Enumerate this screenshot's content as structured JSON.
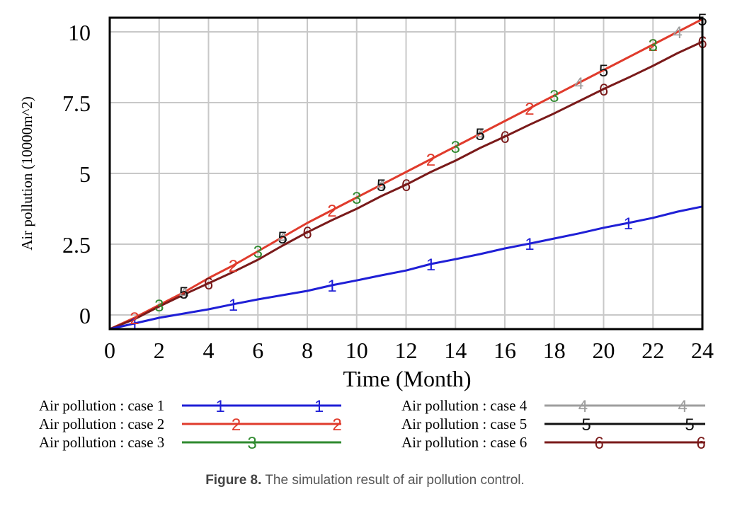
{
  "chart_data": {
    "type": "line",
    "title": "",
    "xlabel": "Time (Month)",
    "ylabel": "Air pollution (10000m^2)",
    "xlim": [
      0,
      24
    ],
    "ylim": [
      -0.5,
      10.5
    ],
    "xticks": [
      0,
      2,
      4,
      6,
      8,
      10,
      12,
      14,
      16,
      18,
      20,
      22,
      24
    ],
    "yticks": [
      0,
      2.5,
      5,
      7.5,
      10
    ],
    "ytick_labels": [
      "0",
      "2.5",
      "5",
      "7.5",
      "10"
    ],
    "grid": true,
    "legend_position": "bottom",
    "series": [
      {
        "name": "Air pollution : case 1",
        "marker": "1",
        "color": "#1f1fd6",
        "x": [
          0,
          1,
          2,
          3,
          4,
          5,
          6,
          7,
          8,
          9,
          10,
          11,
          12,
          13,
          14,
          15,
          16,
          17,
          18,
          19,
          20,
          21,
          22,
          23,
          24
        ],
        "y": [
          -0.5,
          -0.3,
          -0.1,
          0.05,
          0.2,
          0.38,
          0.55,
          0.7,
          0.85,
          1.05,
          1.22,
          1.4,
          1.57,
          1.8,
          1.97,
          2.15,
          2.35,
          2.52,
          2.7,
          2.88,
          3.08,
          3.25,
          3.43,
          3.65,
          3.83
        ],
        "label_positions": [
          1,
          5,
          9,
          13,
          17,
          21
        ],
        "legend_markers": [
          "1",
          "1"
        ]
      },
      {
        "name": "Air pollution : case 2",
        "marker": "2",
        "color": "#e03b2c",
        "x": [
          0,
          1,
          2,
          3,
          4,
          5,
          6,
          7,
          8,
          9,
          10,
          11,
          12,
          13,
          14,
          15,
          16,
          17,
          18,
          19,
          20,
          21,
          22,
          23,
          24
        ],
        "y": [
          -0.5,
          -0.1,
          0.35,
          0.8,
          1.3,
          1.75,
          2.25,
          2.75,
          3.25,
          3.7,
          4.15,
          4.6,
          5.05,
          5.5,
          5.95,
          6.4,
          6.85,
          7.3,
          7.75,
          8.2,
          8.65,
          9.1,
          9.55,
          10.0,
          10.45
        ],
        "label_positions": [
          1,
          5,
          9,
          13,
          17,
          22
        ],
        "legend_markers": [
          "2",
          "2"
        ]
      },
      {
        "name": "Air pollution : case 3",
        "marker": "3",
        "color": "#2f8a2f",
        "x": [
          0,
          2,
          6,
          10,
          14,
          18,
          22
        ],
        "y": [
          -0.5,
          0.35,
          2.25,
          4.15,
          5.95,
          7.75,
          9.55
        ],
        "label_positions": [
          2,
          6,
          10,
          14,
          18,
          22
        ],
        "legend_markers": [
          "3"
        ]
      },
      {
        "name": "Air pollution : case 4",
        "marker": "4",
        "color": "#9e9e9e",
        "x": [
          0,
          3,
          7,
          11,
          15,
          19,
          23
        ],
        "y": [
          -0.5,
          0.8,
          2.75,
          4.6,
          6.4,
          8.2,
          10.0
        ],
        "label_positions": [
          3,
          7,
          11,
          15,
          19,
          23
        ],
        "legend_markers": [
          "4",
          "4"
        ]
      },
      {
        "name": "Air pollution : case 5",
        "marker": "5",
        "color": "#111111",
        "x": [
          0,
          3,
          7,
          11,
          15,
          20,
          24
        ],
        "y": [
          -0.5,
          0.8,
          2.75,
          4.6,
          6.4,
          8.65,
          10.45
        ],
        "label_positions": [
          3,
          7,
          11,
          15,
          20,
          24
        ],
        "legend_markers": [
          "5",
          "5"
        ]
      },
      {
        "name": "Air pollution : case 6",
        "marker": "6",
        "color": "#7a1a1a",
        "x": [
          0,
          1,
          2,
          3,
          4,
          5,
          6,
          7,
          8,
          9,
          10,
          11,
          12,
          13,
          14,
          15,
          16,
          17,
          18,
          19,
          20,
          21,
          22,
          23,
          24
        ],
        "y": [
          -0.5,
          -0.15,
          0.3,
          0.72,
          1.12,
          1.52,
          1.95,
          2.45,
          2.92,
          3.35,
          3.75,
          4.2,
          4.6,
          5.05,
          5.45,
          5.9,
          6.3,
          6.72,
          7.12,
          7.55,
          7.98,
          8.38,
          8.8,
          9.25,
          9.65
        ],
        "label_positions": [
          4,
          8,
          12,
          16,
          20,
          24
        ],
        "legend_markers": [
          "6",
          "6"
        ]
      }
    ]
  },
  "caption": {
    "label": "Figure 8.",
    "text": " The simulation result of air pollution control."
  }
}
